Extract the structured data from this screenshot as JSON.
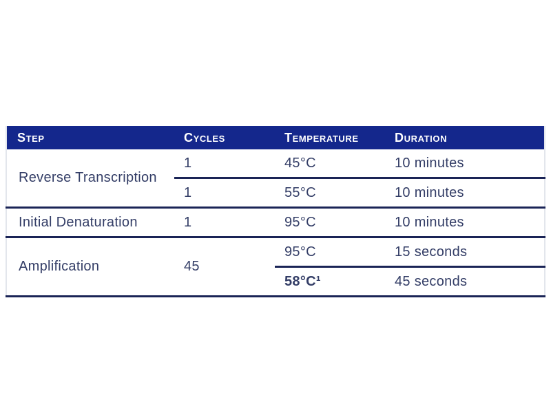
{
  "document": {
    "type": "pcr-cycling-protocol-table",
    "colors": {
      "header_background": "#14278c",
      "header_text": "#ffffff",
      "body_text": "#333d66",
      "rule_line": "#1a2456",
      "page_background": "#ffffff"
    }
  },
  "table": {
    "headers": {
      "step": "Step",
      "cycles": "Cycles",
      "temperature": "Temperature",
      "duration": "Duration"
    },
    "rows": [
      {
        "step": "Reverse Transcription",
        "cycles": "1",
        "temperature": "45°C",
        "duration": "10 minutes"
      },
      {
        "cycles": "1",
        "temperature": "55°C",
        "duration": "10 minutes"
      },
      {
        "step": "Initial Denaturation",
        "cycles": "1",
        "temperature": "95°C",
        "duration": "10 minutes"
      },
      {
        "step": "Amplification",
        "cycles": "45",
        "temperature": "95°C",
        "duration": "15 seconds"
      },
      {
        "temperature": "58°C¹",
        "duration": "45 seconds"
      }
    ]
  }
}
